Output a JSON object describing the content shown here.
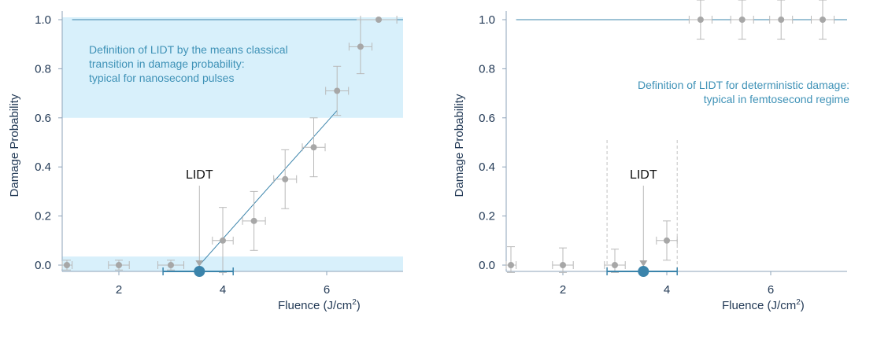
{
  "chart_data": [
    {
      "type": "scatter",
      "xlabel": "Fluence (J/cm",
      "xlabel_sup": "2",
      "xlabel_end": ")",
      "ylabel": "Damage Probability",
      "xlim": [
        1.0,
        7.5
      ],
      "ylim": [
        0.0,
        1.0
      ],
      "xticks": [
        "2",
        "4",
        "6"
      ],
      "yticks": [
        "0.0",
        "0.2",
        "0.4",
        "0.6",
        "0.8",
        "1.0"
      ],
      "grid": false,
      "annotation": [
        "Definition of LIDT by the means classical",
        "transition in damage probability:",
        "typical for nanosecond pulses"
      ],
      "lidt_label": "LIDT",
      "lidt_value": 3.55,
      "lidt_range": [
        2.85,
        4.2
      ],
      "points": [
        {
          "x": 1.0,
          "y": 0.0,
          "xerr": 0.1,
          "yerr": 0.02
        },
        {
          "x": 2.0,
          "y": 0.0,
          "xerr": 0.2,
          "yerr": 0.02
        },
        {
          "x": 3.0,
          "y": 0.0,
          "xerr": 0.25,
          "yerr": 0.02
        },
        {
          "x": 4.0,
          "y": 0.1,
          "xerr": 0.2,
          "yerr": 0.135
        },
        {
          "x": 4.6,
          "y": 0.18,
          "xerr": 0.22,
          "yerr": 0.12
        },
        {
          "x": 5.2,
          "y": 0.35,
          "xerr": 0.22,
          "yerr": 0.12
        },
        {
          "x": 5.75,
          "y": 0.48,
          "xerr": 0.22,
          "yerr": 0.12
        },
        {
          "x": 6.2,
          "y": 0.71,
          "xerr": 0.22,
          "yerr": 0.1
        },
        {
          "x": 6.65,
          "y": 0.89,
          "xerr": 0.22,
          "yerr": 0.11
        },
        {
          "x": 7.0,
          "y": 1.0,
          "xerr": 0.35,
          "yerr": 0.0
        }
      ],
      "fit_line": [
        [
          3.55,
          0.0
        ],
        [
          6.2,
          0.63
        ]
      ]
    },
    {
      "type": "scatter",
      "xlabel": "Fluence (J/cm",
      "xlabel_sup": "2",
      "xlabel_end": ")",
      "ylabel": "Damage Probability",
      "xlim": [
        1.0,
        7.5
      ],
      "ylim": [
        0.0,
        1.0
      ],
      "xticks": [
        "2",
        "4",
        "6"
      ],
      "yticks": [
        "0.0",
        "0.2",
        "0.4",
        "0.6",
        "0.8",
        "1.0"
      ],
      "grid": false,
      "annotation": [
        "Definition of LIDT for deterministic damage:",
        "typical in femtosecond regime"
      ],
      "lidt_label": "LIDT",
      "lidt_value": 3.55,
      "lidt_range": [
        2.85,
        4.2
      ],
      "points": [
        {
          "x": 1.0,
          "y": 0.0,
          "xerr": 0.1,
          "yerr": 0.075
        },
        {
          "x": 2.0,
          "y": 0.0,
          "xerr": 0.2,
          "yerr": 0.07
        },
        {
          "x": 3.0,
          "y": 0.0,
          "xerr": 0.2,
          "yerr": 0.065
        },
        {
          "x": 4.0,
          "y": 0.1,
          "xerr": 0.2,
          "yerr": 0.08
        },
        {
          "x": 4.65,
          "y": 1.0,
          "xerr": 0.22,
          "yerr": 0.08
        },
        {
          "x": 5.45,
          "y": 1.0,
          "xerr": 0.22,
          "yerr": 0.08
        },
        {
          "x": 6.2,
          "y": 1.0,
          "xerr": 0.22,
          "yerr": 0.08
        },
        {
          "x": 7.0,
          "y": 1.0,
          "xerr": 0.22,
          "yerr": 0.08
        }
      ],
      "hline": 1.0
    }
  ]
}
